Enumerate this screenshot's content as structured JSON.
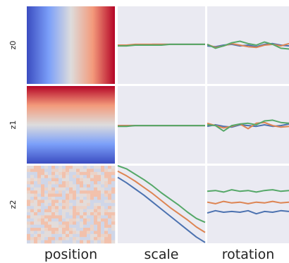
{
  "chart_data": {
    "type": "line",
    "rows": [
      "z0",
      "z1",
      "z2"
    ],
    "columns": [
      "position",
      "scale",
      "rotation"
    ],
    "colors": {
      "panel_bg": "#eaeaf2",
      "blue": "#4c72b0",
      "orange": "#dd8452",
      "green": "#55a868",
      "heat_low": "#3b4cc0",
      "heat_mid": "#dddddd",
      "heat_high": "#b40426"
    },
    "heatmaps": {
      "z0": {
        "direction": "left-to-right",
        "range": [
          -1,
          1
        ]
      },
      "z1": {
        "direction": "top-to-bottom",
        "range": [
          1,
          -1
        ]
      },
      "z2": {
        "direction": "noise",
        "level": 0.1
      }
    },
    "x": [
      0,
      0.1,
      0.2,
      0.3,
      0.4,
      0.5,
      0.6,
      0.7,
      0.8,
      0.9,
      1.0
    ],
    "ylim": [
      0,
      1
    ],
    "series": {
      "z0_scale": [
        {
          "color": "blue",
          "values": [
            0.5,
            0.5,
            0.5,
            0.5,
            0.51,
            0.51,
            0.51,
            0.51,
            0.51,
            0.51,
            0.51
          ]
        },
        {
          "color": "orange",
          "values": [
            0.5,
            0.5,
            0.51,
            0.51,
            0.51,
            0.51,
            0.51,
            0.51,
            0.51,
            0.51,
            0.51
          ]
        },
        {
          "color": "green",
          "values": [
            0.49,
            0.49,
            0.5,
            0.5,
            0.5,
            0.5,
            0.51,
            0.51,
            0.51,
            0.51,
            0.51
          ]
        }
      ],
      "z0_rotation": [
        {
          "color": "blue",
          "values": [
            0.49,
            0.48,
            0.5,
            0.51,
            0.49,
            0.5,
            0.48,
            0.51,
            0.52,
            0.5,
            0.49
          ]
        },
        {
          "color": "orange",
          "values": [
            0.51,
            0.47,
            0.49,
            0.52,
            0.5,
            0.48,
            0.47,
            0.5,
            0.51,
            0.49,
            0.52
          ]
        },
        {
          "color": "green",
          "values": [
            0.51,
            0.46,
            0.49,
            0.53,
            0.55,
            0.52,
            0.5,
            0.54,
            0.51,
            0.46,
            0.45
          ]
        }
      ],
      "z1_scale": [
        {
          "color": "blue",
          "values": [
            0.49,
            0.49,
            0.49,
            0.49,
            0.49,
            0.49,
            0.49,
            0.49,
            0.49,
            0.49,
            0.49
          ]
        },
        {
          "color": "orange",
          "values": [
            0.49,
            0.49,
            0.49,
            0.49,
            0.49,
            0.49,
            0.49,
            0.49,
            0.49,
            0.49,
            0.49
          ]
        },
        {
          "color": "green",
          "values": [
            0.48,
            0.48,
            0.49,
            0.49,
            0.49,
            0.49,
            0.49,
            0.49,
            0.49,
            0.49,
            0.49
          ]
        }
      ],
      "z1_rotation": [
        {
          "color": "blue",
          "values": [
            0.48,
            0.5,
            0.48,
            0.47,
            0.5,
            0.49,
            0.48,
            0.5,
            0.48,
            0.49,
            0.51
          ]
        },
        {
          "color": "orange",
          "values": [
            0.52,
            0.49,
            0.46,
            0.48,
            0.51,
            0.45,
            0.52,
            0.53,
            0.49,
            0.47,
            0.48
          ]
        },
        {
          "color": "green",
          "values": [
            0.5,
            0.49,
            0.42,
            0.49,
            0.51,
            0.52,
            0.5,
            0.55,
            0.56,
            0.53,
            0.52
          ]
        }
      ],
      "z2_scale": [
        {
          "color": "blue",
          "values": [
            0.85,
            0.78,
            0.7,
            0.62,
            0.53,
            0.44,
            0.35,
            0.26,
            0.17,
            0.08,
            0.01
          ]
        },
        {
          "color": "orange",
          "values": [
            0.93,
            0.87,
            0.8,
            0.72,
            0.64,
            0.55,
            0.46,
            0.38,
            0.3,
            0.21,
            0.14
          ]
        },
        {
          "color": "green",
          "values": [
            1.0,
            0.96,
            0.89,
            0.82,
            0.74,
            0.65,
            0.57,
            0.49,
            0.4,
            0.32,
            0.27
          ]
        }
      ],
      "z2_rotation": [
        {
          "color": "blue",
          "values": [
            0.39,
            0.42,
            0.4,
            0.41,
            0.4,
            0.42,
            0.38,
            0.41,
            0.4,
            0.42,
            0.41
          ]
        },
        {
          "color": "orange",
          "values": [
            0.53,
            0.51,
            0.54,
            0.52,
            0.53,
            0.51,
            0.53,
            0.52,
            0.54,
            0.52,
            0.53
          ]
        },
        {
          "color": "green",
          "values": [
            0.67,
            0.68,
            0.66,
            0.69,
            0.67,
            0.68,
            0.66,
            0.68,
            0.69,
            0.67,
            0.68
          ]
        }
      ]
    }
  }
}
